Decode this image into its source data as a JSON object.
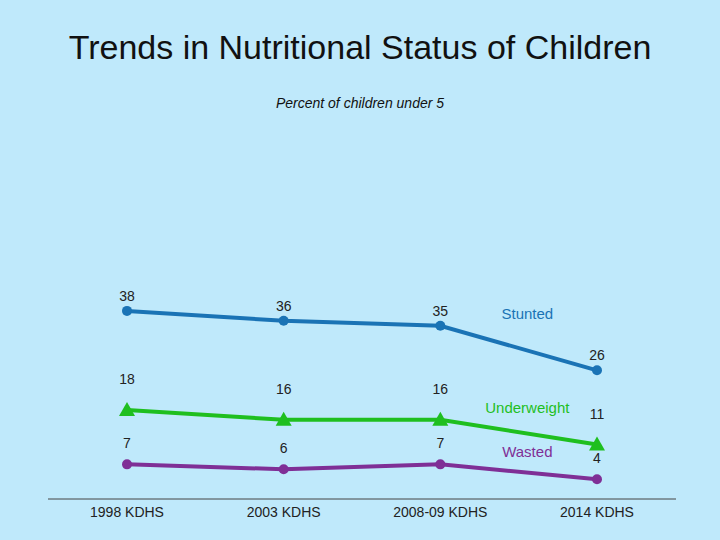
{
  "chart_data": {
    "type": "line",
    "title": "Trends in Nutritional Status of Children",
    "subtitle": "Percent of children under 5",
    "categories": [
      "1998 KDHS",
      "2003 KDHS",
      "2008-09 KDHS",
      "2014 KDHS"
    ],
    "series": [
      {
        "name": "Stunted",
        "color": "#1a73b5",
        "marker": "circle",
        "values": [
          38,
          36,
          35,
          26
        ]
      },
      {
        "name": "Underweight",
        "color": "#1fbf1f",
        "marker": "triangle",
        "values": [
          18,
          16,
          16,
          11
        ]
      },
      {
        "name": "Wasted",
        "color": "#7f2f96",
        "marker": "circle",
        "values": [
          7,
          6,
          7,
          4
        ]
      }
    ],
    "ylim": [
      0,
      80
    ],
    "data_labels": true,
    "tick_labels": "x"
  }
}
